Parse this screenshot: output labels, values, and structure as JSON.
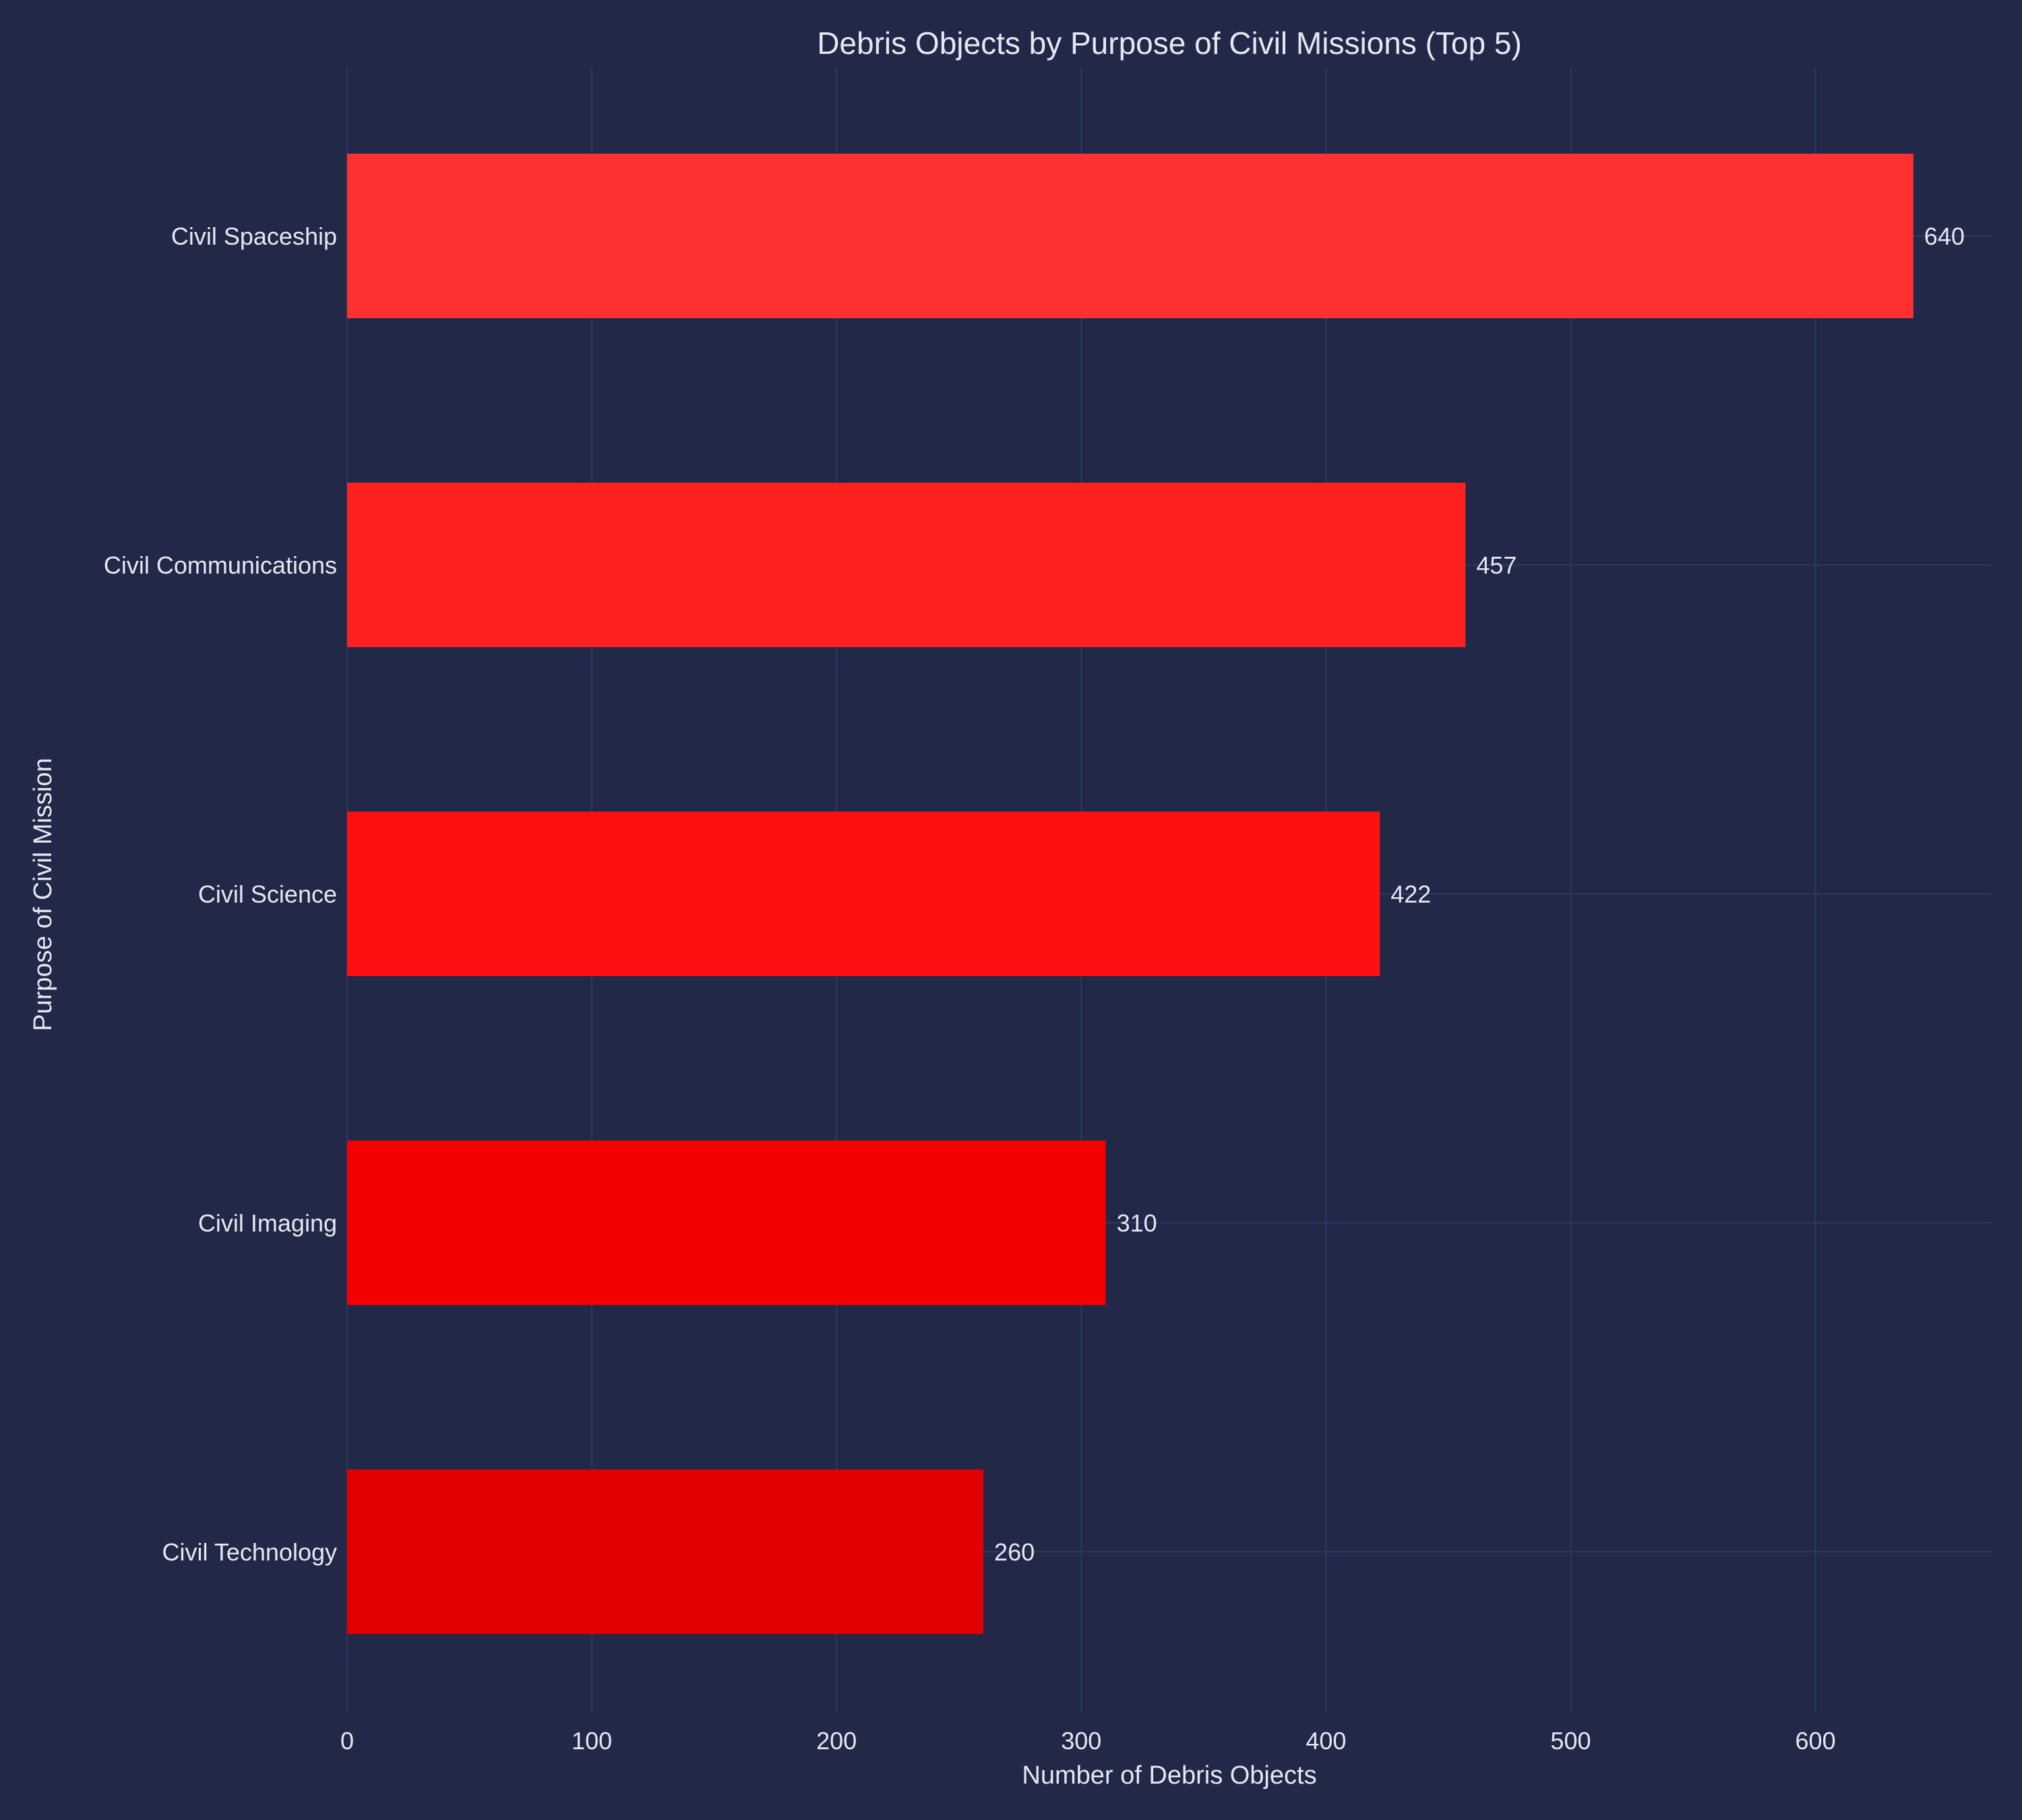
{
  "chart_data": {
    "type": "bar",
    "orientation": "horizontal",
    "title": "Debris Objects by Purpose of Civil Missions (Top 5)",
    "xlabel": "Number of Debris Objects",
    "ylabel": "Purpose of Civil Mission",
    "categories": [
      "Civil Spaceship",
      "Civil Communications",
      "Civil Science",
      "Civil Imaging",
      "Civil Technology"
    ],
    "values": [
      640,
      457,
      422,
      310,
      260
    ],
    "bar_colors": [
      "#ff3030",
      "#ff2020",
      "#ff1010",
      "#f50000",
      "#e30000"
    ],
    "xlim": [
      0,
      672
    ],
    "xticks": [
      0,
      100,
      200,
      300,
      400,
      500,
      600
    ],
    "xtick_labels": [
      "0",
      "100",
      "200",
      "300",
      "400",
      "500",
      "600"
    ],
    "grid": true,
    "background_color": "#212848",
    "grid_color": "#2c3a62",
    "text_color": "#e6e8f0"
  }
}
